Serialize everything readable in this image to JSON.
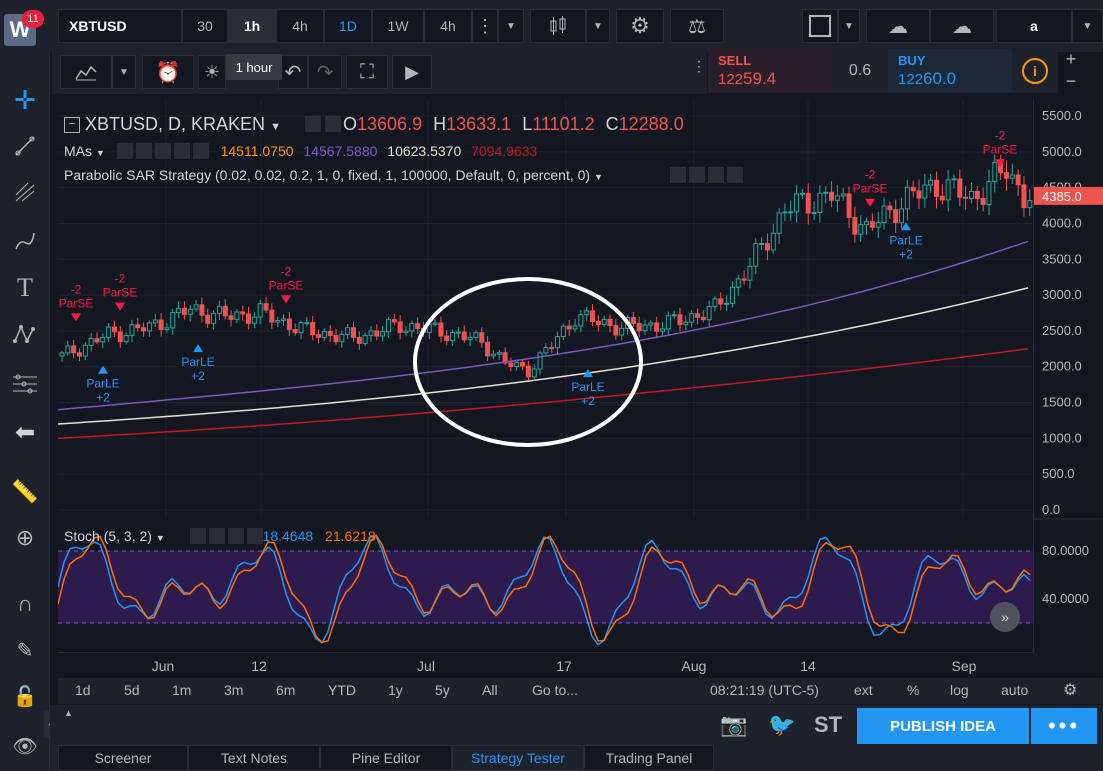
{
  "app": {
    "logo_letter": "W",
    "notification_count": "11"
  },
  "toolbar": {
    "symbol": "XBTUSD",
    "intervals": [
      "30",
      "1h",
      "4h",
      "1D",
      "1W",
      "4h"
    ],
    "active_interval": "1h",
    "tooltip": "1 hour",
    "user_label": "a"
  },
  "trade": {
    "sell_label": "SELL",
    "sell_price_main": "122",
    "sell_price_big": "59.4",
    "spread": "0.6",
    "buy_label": "BUY",
    "buy_price_main": "122",
    "buy_price_big": "60.0"
  },
  "legend": {
    "title": "XBTUSD, D, KRAKEN",
    "open_label": "O",
    "open": "13606.9",
    "high_label": "H",
    "high": "13633.1",
    "low_label": "L",
    "low": "11101.2",
    "close_label": "C",
    "close": "12288.0",
    "mas_label": "MAs",
    "ma_values": [
      "14511.0750",
      "14567.5880",
      "10623.5370",
      "7094.9633"
    ],
    "strategy": "Parabolic SAR Strategy (0.02, 0.02, 0.2, 1, 0, fixed, 1, 100000, Default, 0, percent, 0)"
  },
  "chart_data": {
    "type": "candlestick",
    "price_axis_ticks": [
      "5500.0",
      "5000.0",
      "4500.0",
      "4000.0",
      "3500.0",
      "3000.0",
      "2500.0",
      "2000.0",
      "1500.0",
      "1000.0",
      "500.0",
      "0.0"
    ],
    "price_label": "4385.0",
    "ylim": [
      0,
      5700
    ],
    "time_ticks": [
      "Jun",
      "12",
      "Jul",
      "17",
      "Aug",
      "14",
      "Sep"
    ],
    "signals": [
      {
        "type": "short",
        "label": "ParSE",
        "qty": "-2"
      },
      {
        "type": "short",
        "label": "ParSE",
        "qty": "-2"
      },
      {
        "type": "long",
        "label": "ParLE",
        "qty": "+2"
      },
      {
        "type": "long",
        "label": "ParLE",
        "qty": "+2"
      },
      {
        "type": "short",
        "label": "ParSE",
        "qty": "-2"
      },
      {
        "type": "long",
        "label": "ParLE",
        "qty": "+2"
      },
      {
        "type": "short",
        "label": "ParSE",
        "qty": "-2"
      },
      {
        "type": "long",
        "label": "ParLE",
        "qty": "+2"
      },
      {
        "type": "short",
        "label": "ParSE",
        "qty": "-2"
      }
    ]
  },
  "stoch": {
    "title": "Stoch (5, 3, 2)",
    "k_value": "18.4648",
    "d_value": "21.6218",
    "axis_ticks": [
      "80.0000",
      "40.0000"
    ]
  },
  "bottombar": {
    "ranges": [
      "1d",
      "5d",
      "1m",
      "3m",
      "6m",
      "YTD",
      "1y",
      "5y",
      "All",
      "Go to..."
    ],
    "time": "08:21:19 (UTC-5)",
    "options": [
      "ext",
      "%",
      "log",
      "auto"
    ]
  },
  "footer": {
    "publish": "PUBLISH IDEA",
    "tabs": [
      "Screener",
      "Text Notes",
      "Pine Editor",
      "Strategy Tester",
      "Trading Panel"
    ],
    "active_tab": "Strategy Tester",
    "st_label": "ST"
  },
  "colors": {
    "up": "#26a69a",
    "down": "#ef5350",
    "ma1": "#7e57c2",
    "ma2": "#e8e3c8",
    "ma3": "#c2181b",
    "stoch_k": "#2196f3",
    "stoch_d": "#ff6d00",
    "accent": "#2196f3"
  }
}
